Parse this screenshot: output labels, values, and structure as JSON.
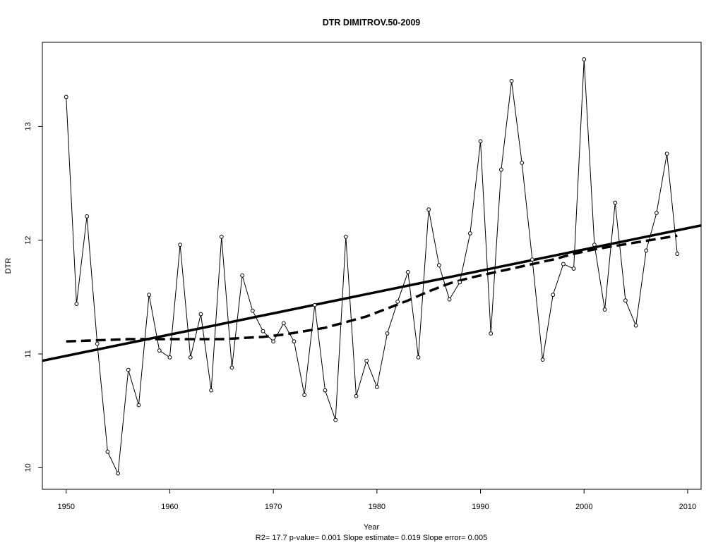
{
  "chart_data": {
    "type": "line",
    "title": "DTR   DIMITROV.50-2009",
    "xlabel": "Year",
    "ylabel": "DTR",
    "footer": "R2= 17.7  p-value= 0.001  Slope estimate= 0.019  Slope error= 0.005",
    "xlim": [
      1947.7,
      2011.3
    ],
    "ylim": [
      9.81,
      13.74
    ],
    "x_ticks": [
      1950,
      1960,
      1970,
      1980,
      1990,
      2000,
      2010
    ],
    "y_ticks": [
      10,
      11,
      12,
      13
    ],
    "grid": false,
    "series": [
      {
        "style": "line-with-points",
        "x": [
          1950,
          1951,
          1952,
          1953,
          1954,
          1955,
          1956,
          1957,
          1958,
          1959,
          1960,
          1961,
          1962,
          1963,
          1964,
          1965,
          1966,
          1967,
          1968,
          1969,
          1970,
          1971,
          1972,
          1973,
          1974,
          1975,
          1976,
          1977,
          1978,
          1979,
          1980,
          1981,
          1982,
          1983,
          1984,
          1985,
          1986,
          1987,
          1988,
          1989,
          1990,
          1991,
          1992,
          1993,
          1994,
          1995,
          1996,
          1997,
          1998,
          1999,
          2000,
          2001,
          2002,
          2003,
          2004,
          2005,
          2006,
          2007,
          2008,
          2009
        ],
        "values": [
          13.26,
          11.44,
          12.21,
          11.09,
          10.14,
          9.95,
          10.86,
          10.55,
          11.52,
          11.03,
          10.97,
          11.96,
          10.97,
          11.35,
          10.68,
          12.03,
          10.88,
          11.69,
          11.38,
          11.2,
          11.11,
          11.27,
          11.11,
          10.64,
          11.43,
          10.68,
          10.42,
          12.03,
          10.63,
          10.94,
          10.71,
          11.18,
          11.46,
          11.72,
          10.97,
          12.27,
          11.78,
          11.48,
          11.63,
          12.06,
          12.87,
          11.18,
          12.62,
          13.4,
          12.68,
          11.83,
          10.95,
          11.52,
          11.79,
          11.75,
          13.59,
          11.96,
          11.39,
          12.33,
          11.47,
          11.25,
          11.91,
          12.24,
          12.76,
          11.88
        ]
      },
      {
        "style": "linear-trend",
        "x": [
          1947.7,
          2011.3
        ],
        "values": [
          10.94,
          12.13
        ]
      },
      {
        "style": "smoothed-dashed",
        "x": [
          1950,
          1953,
          1956,
          1959,
          1962,
          1965,
          1967,
          1969,
          1971,
          1973,
          1975,
          1977,
          1979,
          1981,
          1983,
          1985,
          1987,
          1989,
          1991,
          1993,
          1995,
          1997,
          1999,
          2001,
          2003,
          2005,
          2007,
          2009
        ],
        "values": [
          11.11,
          11.12,
          11.13,
          11.13,
          11.13,
          11.13,
          11.14,
          11.15,
          11.17,
          11.2,
          11.23,
          11.28,
          11.33,
          11.4,
          11.47,
          11.55,
          11.62,
          11.67,
          11.71,
          11.75,
          11.79,
          11.83,
          11.88,
          11.92,
          11.95,
          11.98,
          12.01,
          12.04
        ]
      }
    ]
  }
}
